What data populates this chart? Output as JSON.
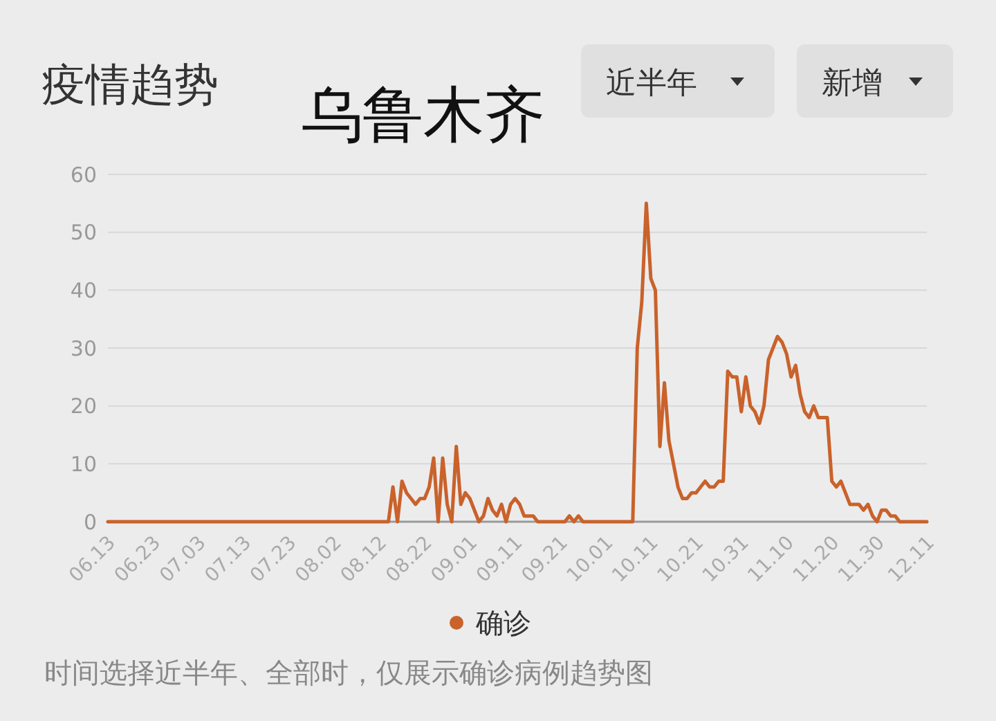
{
  "chart_data": {
    "type": "line",
    "title": "疫情趋势",
    "subtitle": "乌鲁木齐",
    "annotations": [
      "近半年",
      "新增",
      "时间选择近半年、全部时，仅展示确诊病例趋势图"
    ],
    "x": [
      "--06-13",
      "--08-14",
      "--08-15",
      "--08-16",
      "--08-17",
      "--08-18",
      "--08-19",
      "--08-20",
      "--08-21",
      "--08-22",
      "--08-23",
      "--08-24",
      "--08-25",
      "--08-26",
      "--08-27",
      "--08-28",
      "--08-29",
      "--08-30",
      "--08-31",
      "--09-01",
      "--09-02",
      "--09-03",
      "--09-04",
      "--09-05",
      "--09-06",
      "--09-07",
      "--09-08",
      "--09-09",
      "--09-10",
      "--09-11",
      "--09-12",
      "--09-13",
      "--09-14",
      "--09-15",
      "--09-16",
      "--09-22",
      "--09-23",
      "--09-24",
      "--09-25",
      "--09-26",
      "--10-07",
      "--10-08",
      "--10-09",
      "--10-10",
      "--10-11",
      "--10-12",
      "--10-13",
      "--10-14",
      "--10-15",
      "--10-16",
      "--10-17",
      "--10-18",
      "--10-19",
      "--10-20",
      "--10-21",
      "--10-22",
      "--10-23",
      "--10-24",
      "--10-25",
      "--10-26",
      "--10-27",
      "--10-28",
      "--10-29",
      "--10-30",
      "--10-31",
      "--11-01",
      "--11-02",
      "--11-03",
      "--11-04",
      "--11-05",
      "--11-06",
      "--11-07",
      "--11-08",
      "--11-09",
      "--11-10",
      "--11-11",
      "--11-12",
      "--11-13",
      "--11-14",
      "--11-15",
      "--11-16",
      "--11-17",
      "--11-18",
      "--11-19",
      "--11-20",
      "--11-21",
      "--11-22",
      "--11-23",
      "--11-24",
      "--11-25",
      "--11-26",
      "--11-27",
      "--11-28",
      "--11-29",
      "--11-30",
      "--12-01",
      "--12-02",
      "--12-03",
      "--12-04",
      "--12-05",
      "--12-11"
    ],
    "series": [
      {
        "name": "确诊",
        "color": "#c9622b",
        "values": [
          0,
          0,
          6,
          0,
          7,
          5,
          4,
          3,
          4,
          4,
          6,
          11,
          0,
          11,
          3,
          0,
          13,
          3,
          5,
          4,
          2,
          0,
          1,
          4,
          2,
          1,
          3,
          0,
          3,
          4,
          3,
          1,
          1,
          1,
          0,
          0,
          1,
          0,
          1,
          0,
          0,
          30,
          38,
          55,
          42,
          40,
          13,
          24,
          14,
          10,
          6,
          4,
          4,
          5,
          5,
          6,
          7,
          6,
          6,
          7,
          7,
          26,
          25,
          25,
          19,
          25,
          20,
          19,
          17,
          20,
          28,
          30,
          32,
          31,
          29,
          25,
          27,
          22,
          19,
          18,
          20,
          18,
          18,
          18,
          7,
          6,
          7,
          5,
          3,
          3,
          3,
          2,
          3,
          1,
          0,
          2,
          2,
          1,
          1,
          0,
          0
        ]
      }
    ],
    "ylim": [
      0,
      60
    ],
    "yticks": [
      0,
      10,
      20,
      30,
      40,
      50,
      60
    ],
    "xlim": [
      "--06-13",
      "--12-11"
    ],
    "xticks": [
      {
        "value": "--06-13",
        "label": "06.13"
      },
      {
        "value": "--06-23",
        "label": "06.23"
      },
      {
        "value": "--07-03",
        "label": "07.03"
      },
      {
        "value": "--07-13",
        "label": "07.13"
      },
      {
        "value": "--07-23",
        "label": "07.23"
      },
      {
        "value": "--08-02",
        "label": "08.02"
      },
      {
        "value": "--08-12",
        "label": "08.12"
      },
      {
        "value": "--08-22",
        "label": "08.22"
      },
      {
        "value": "--09-01",
        "label": "09.01"
      },
      {
        "value": "--09-11",
        "label": "09.11"
      },
      {
        "value": "--09-21",
        "label": "09.21"
      },
      {
        "value": "--10-01",
        "label": "10.01"
      },
      {
        "value": "--10-11",
        "label": "10.11"
      },
      {
        "value": "--10-21",
        "label": "10.21"
      },
      {
        "value": "--10-31",
        "label": "10.31"
      },
      {
        "value": "--11-10",
        "label": "11.10"
      },
      {
        "value": "--11-20",
        "label": "11.20"
      },
      {
        "value": "--11-30",
        "label": "11.30"
      },
      {
        "value": "--12-11",
        "label": "12.11"
      }
    ],
    "grid": "y",
    "legend": "bottom",
    "marker": "none",
    "line_style": "solid"
  }
}
